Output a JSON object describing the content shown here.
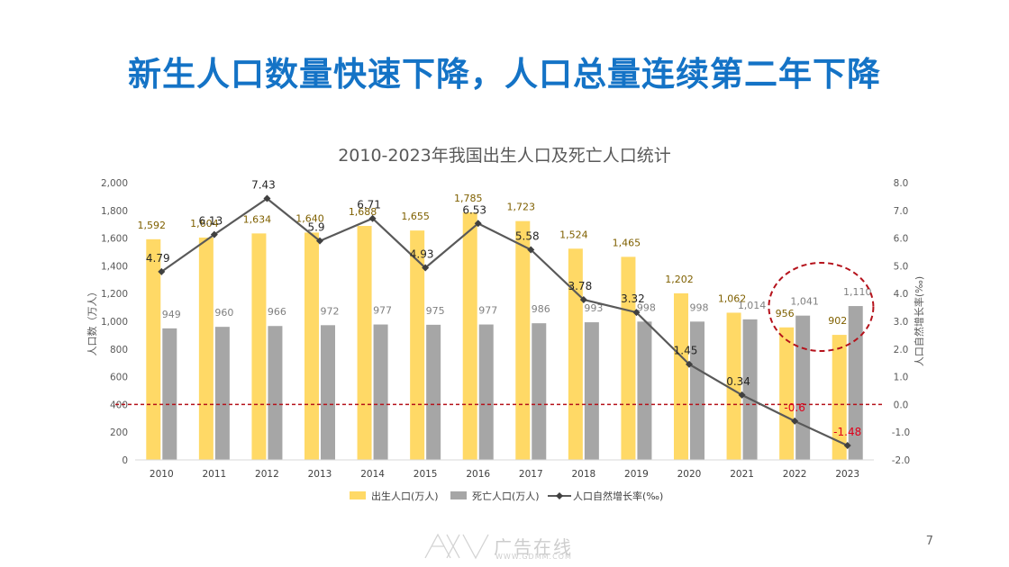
{
  "slide": {
    "headline": "新生人口数量快速下降，人口总量连续第二年下降",
    "page_number": "7",
    "watermark_brand": "广告在线",
    "watermark_url": "WWW.GDMM.COM"
  },
  "colors": {
    "headline": "#1473c6",
    "births": "#ffd966",
    "deaths": "#a6a6a6",
    "rate_line": "#595959",
    "highlight": "#b5121b",
    "negative_label": "#e0001b",
    "births_label": "#7f6000",
    "deaths_label": "#808080"
  },
  "chart_data": {
    "type": "bar+line",
    "title": "2010-2023年我国出生人口及死亡人口统计",
    "categories": [
      "2010",
      "2011",
      "2012",
      "2013",
      "2014",
      "2015",
      "2016",
      "2017",
      "2018",
      "2019",
      "2020",
      "2021",
      "2022",
      "2023"
    ],
    "series": [
      {
        "name": "出生人口(万人)",
        "type": "bar",
        "axis": "left",
        "values": [
          1592,
          1604,
          1634,
          1640,
          1688,
          1655,
          1785,
          1723,
          1524,
          1465,
          1202,
          1062,
          956,
          902
        ],
        "labels": [
          "1,592",
          "1,604",
          "1,634",
          "1,640",
          "1,688",
          "1,655",
          "1,785",
          "1,723",
          "1,524",
          "1,465",
          "1,202",
          "1,062",
          "956",
          "902"
        ]
      },
      {
        "name": "死亡人口(万人)",
        "type": "bar",
        "axis": "left",
        "values": [
          949,
          960,
          966,
          972,
          977,
          975,
          977,
          986,
          993,
          998,
          998,
          1014,
          1041,
          1110
        ],
        "labels": [
          "949",
          "960",
          "966",
          "972",
          "977",
          "975",
          "977",
          "986",
          "993",
          "998",
          "998",
          "1,014",
          "1,041",
          "1,110"
        ]
      },
      {
        "name": "人口自然增长率(‰)",
        "type": "line",
        "axis": "right",
        "values": [
          4.79,
          6.13,
          7.43,
          5.9,
          6.71,
          4.93,
          6.53,
          5.58,
          3.78,
          3.32,
          1.45,
          0.34,
          -0.6,
          -1.48
        ],
        "labels": [
          "4.79",
          "6.13",
          "7.43",
          "5.9",
          "6.71",
          "4.93",
          "6.53",
          "5.58",
          "3.78",
          "3.32",
          "1.45",
          "0.34",
          "-0.6",
          "-1.48"
        ]
      }
    ],
    "ylabel_left": "人口数（万人）",
    "ylabel_right": "人口自然增长率(‰)",
    "ylim_left": [
      0,
      2000
    ],
    "ylim_right": [
      -2.0,
      8.0
    ],
    "yticks_left": [
      "0",
      "200",
      "400",
      "600",
      "800",
      "1,000",
      "1,200",
      "1,400",
      "1,600",
      "1,800",
      "2,000"
    ],
    "yticks_right": [
      "-2.0",
      "-1.0",
      "0.0",
      "1.0",
      "2.0",
      "3.0",
      "4.0",
      "5.0",
      "6.0",
      "7.0",
      "8.0"
    ],
    "reference_line_right": 0,
    "highlight_years": [
      "2022",
      "2023"
    ],
    "legend_position": "bottom"
  }
}
